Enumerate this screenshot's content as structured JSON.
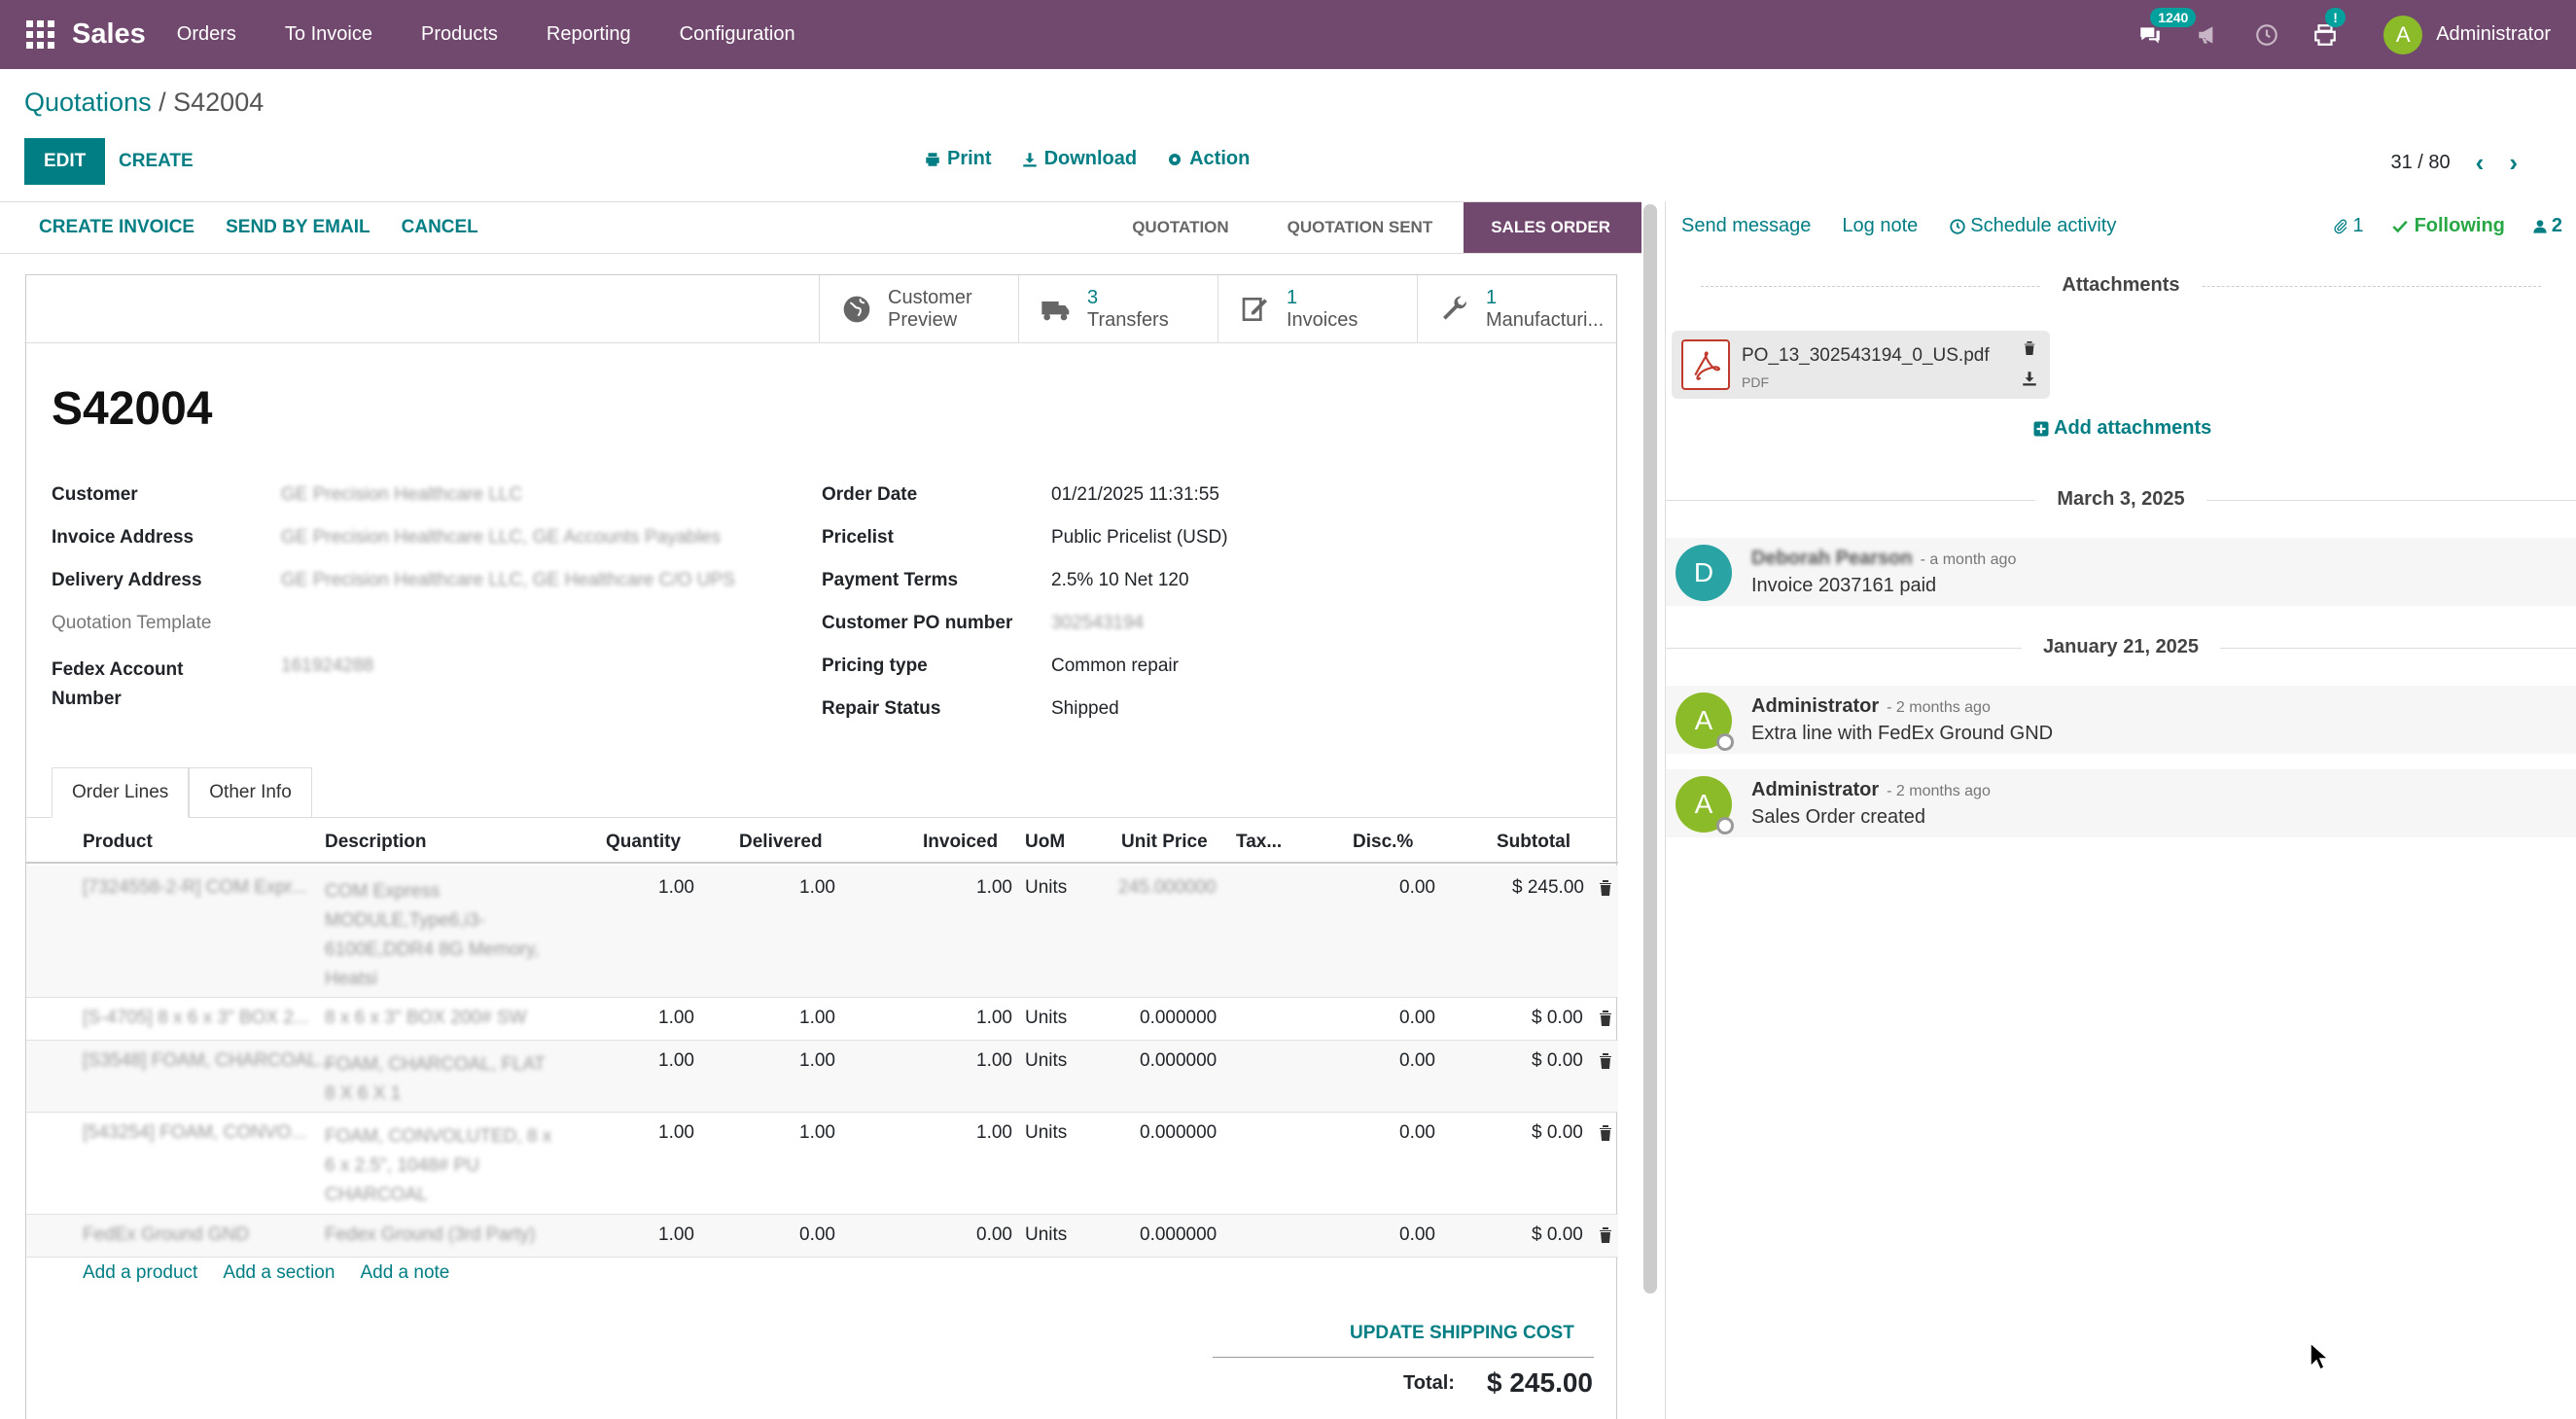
{
  "topbar": {
    "app_name": "Sales",
    "menu": [
      "Orders",
      "To Invoice",
      "Products",
      "Reporting",
      "Configuration"
    ],
    "messages_badge": "1240",
    "activity_badge": "!",
    "user_initial": "A",
    "user_name": "Administrator",
    "color": "#71496e"
  },
  "control_panel": {
    "breadcrumb_parent": "Quotations",
    "breadcrumb_sep": "/",
    "breadcrumb_current": "S42004",
    "edit_label": "EDIT",
    "create_label": "CREATE",
    "print_label": "Print",
    "download_label": "Download",
    "action_label": "Action",
    "pager": "31 / 80"
  },
  "statusbar": {
    "buttons": [
      "CREATE INVOICE",
      "SEND BY EMAIL",
      "CANCEL"
    ],
    "stages": [
      "QUOTATION",
      "QUOTATION SENT",
      "SALES ORDER"
    ],
    "active_stage": "SALES ORDER"
  },
  "smart_buttons": [
    {
      "value": "",
      "label": "Customer",
      "label2": "Preview",
      "icon": "globe-icon"
    },
    {
      "value": "3",
      "label": "Transfers",
      "icon": "truck-icon"
    },
    {
      "value": "1",
      "label": "Invoices",
      "icon": "invoice-icon"
    },
    {
      "value": "1",
      "label": "Manufacturi...",
      "icon": "wrench-icon"
    }
  ],
  "record": {
    "name": "S42004",
    "left_fields": [
      {
        "label": "Customer",
        "value": "GE Precision Healthcare LLC"
      },
      {
        "label": "Invoice Address",
        "value": "GE Precision Healthcare LLC, GE Accounts Payables"
      },
      {
        "label": "Delivery Address",
        "value": "GE Precision Healthcare LLC, GE Healthcare C/O UPS"
      },
      {
        "label": "Quotation Template",
        "value": ""
      },
      {
        "label": "Fedex Account",
        "label2": "Number",
        "value": "161924288"
      }
    ],
    "right_fields": [
      {
        "label": "Order Date",
        "value": "01/21/2025 11:31:55"
      },
      {
        "label": "Pricelist",
        "value": "Public Pricelist (USD)"
      },
      {
        "label": "Payment Terms",
        "value": "2.5% 10 Net 120"
      },
      {
        "label": "Customer PO number",
        "value": "302543194"
      },
      {
        "label": "Pricing type",
        "value": "Common repair"
      },
      {
        "label": "Repair Status",
        "value": "Shipped"
      }
    ]
  },
  "tabs": [
    "Order Lines",
    "Other Info"
  ],
  "order_lines": {
    "headers": [
      "Product",
      "Description",
      "Quantity",
      "Delivered",
      "Invoiced",
      "UoM",
      "Unit Price",
      "Tax...",
      "Disc.%",
      "Subtotal"
    ],
    "rows": [
      {
        "product": "[7324558-2-R] COM Expr...",
        "desc": [
          "COM Express",
          "MODULE,Type6,i3-",
          "6100E,DDR4 8G Memory,",
          "Heatsi"
        ],
        "qty": "1.00",
        "delivered": "1.00",
        "invoiced": "1.00",
        "uom": "Units",
        "price": "245.000000",
        "price_blur": true,
        "disc": "0.00",
        "subtotal": "$ 245.00"
      },
      {
        "product": "[S-4705] 8 x 6 x 3\" BOX 2...",
        "desc": [
          "8 x 6 x 3\" BOX 200# SW"
        ],
        "qty": "1.00",
        "delivered": "1.00",
        "invoiced": "1.00",
        "uom": "Units",
        "price": "0.000000",
        "price_blur": false,
        "disc": "0.00",
        "subtotal": "$ 0.00"
      },
      {
        "product": "[S3548] FOAM, CHARCOAL...",
        "desc": [
          "FOAM, CHARCOAL, FLAT",
          "8 X 6 X 1"
        ],
        "qty": "1.00",
        "delivered": "1.00",
        "invoiced": "1.00",
        "uom": "Units",
        "price": "0.000000",
        "price_blur": false,
        "disc": "0.00",
        "subtotal": "$ 0.00"
      },
      {
        "product": "[543254] FOAM, CONVO...",
        "desc": [
          "FOAM, CONVOLUTED, 8 x",
          "6 x 2.5\", 1048# PU",
          "CHARCOAL"
        ],
        "qty": "1.00",
        "delivered": "1.00",
        "invoiced": "1.00",
        "uom": "Units",
        "price": "0.000000",
        "price_blur": false,
        "disc": "0.00",
        "subtotal": "$ 0.00"
      },
      {
        "product": "FedEx Ground GND",
        "desc": [
          "Fedex Ground (3rd Party)"
        ],
        "qty": "1.00",
        "delivered": "0.00",
        "invoiced": "0.00",
        "uom": "Units",
        "price": "0.000000",
        "price_blur": false,
        "disc": "0.00",
        "subtotal": "$ 0.00"
      }
    ],
    "add_links": [
      "Add a product",
      "Add a section",
      "Add a note"
    ],
    "update_shipping": "UPDATE SHIPPING COST",
    "total_label": "Total:",
    "total_value": "$ 245.00"
  },
  "chatter": {
    "send_message": "Send message",
    "log_note": "Log note",
    "schedule_activity": "Schedule activity",
    "attachments_count": "1",
    "following": "Following",
    "followers_count": "2",
    "attachments_title": "Attachments",
    "attachment": {
      "name": "PO_13_302543194_0_US.pdf",
      "type": "PDF"
    },
    "add_attachments": "Add attachments",
    "dates": [
      "March 3, 2025",
      "January 21, 2025"
    ],
    "messages": [
      {
        "initial": "D",
        "author": "Deborah Pearson",
        "time": "- a month ago",
        "body": "Invoice 2037161 paid",
        "color": "#29a3a3"
      },
      {
        "initial": "A",
        "author": "Administrator",
        "time": "- 2 months ago",
        "body": "Extra line with FedEx Ground GND",
        "color": "#8cbb29"
      },
      {
        "initial": "A",
        "author": "Administrator",
        "time": "- 2 months ago",
        "body": "Sales Order created",
        "color": "#8cbb29"
      }
    ]
  }
}
